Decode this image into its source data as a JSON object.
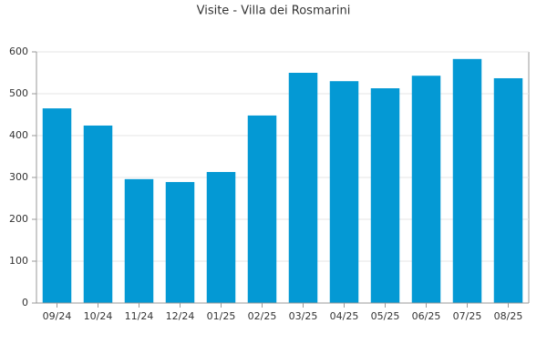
{
  "chart_data": {
    "type": "bar",
    "title": "Visite - Villa dei Rosmarini",
    "categories": [
      "09/24",
      "10/24",
      "11/24",
      "12/24",
      "01/25",
      "02/25",
      "03/25",
      "04/25",
      "05/25",
      "06/25",
      "07/25",
      "08/25"
    ],
    "values": [
      465,
      424,
      296,
      289,
      313,
      448,
      550,
      530,
      513,
      543,
      583,
      537
    ],
    "color": "#0499d4",
    "ylim": [
      0,
      600
    ],
    "yticks": [
      0,
      100,
      200,
      300,
      400,
      500,
      600
    ],
    "grid": true
  }
}
